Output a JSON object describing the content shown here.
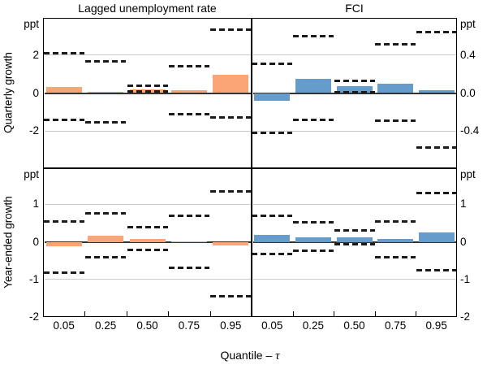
{
  "figure": {
    "column_titles": [
      "Lagged unemployment rate",
      "FCI"
    ],
    "row_titles": [
      "Quarterly growth",
      "Year-ended growth"
    ],
    "x_axis_label_prefix": "Quantile – ",
    "x_axis_label_symbol": "τ",
    "unit_label": "ppt",
    "x_tick_labels": [
      "0.05",
      "0.25",
      "0.50",
      "0.75",
      "0.95"
    ]
  },
  "colors": {
    "lagged_unemployment": "#FBA476",
    "fci": "#669CCB",
    "ci_dash": "#1b1b1b",
    "gridline": "#c9c9c9",
    "zero_line": "#333333",
    "border": "#000000"
  },
  "chart_data": [
    {
      "id": "quarterly-lagged-unemployment",
      "type": "bar",
      "title": "Lagged unemployment rate",
      "row_label": "Quarterly growth",
      "col": 0,
      "row": 0,
      "series": "lagged_unemployment",
      "axis_side": "left",
      "unit": "ppt",
      "ylim": [
        -3.95,
        3.95
      ],
      "yticks": [
        2,
        0,
        -2
      ],
      "ytick_labels": [
        "2",
        "0",
        "-2"
      ],
      "categories": [
        "0.05",
        "0.25",
        "0.50",
        "0.75",
        "0.95"
      ],
      "bars": [
        0.3,
        0.05,
        0.2,
        0.15,
        0.95
      ],
      "ci_upper": [
        2.1,
        1.65,
        0.4,
        1.4,
        3.35
      ],
      "ci_lower": [
        -1.4,
        -1.55,
        0.1,
        -1.1,
        -1.3
      ],
      "grid": true,
      "legend": false
    },
    {
      "id": "quarterly-fci",
      "type": "bar",
      "title": "FCI",
      "row_label": "Quarterly growth",
      "col": 1,
      "row": 0,
      "series": "fci",
      "axis_side": "right",
      "unit": "ppt",
      "ylim": [
        -0.79,
        0.79
      ],
      "yticks": [
        0.4,
        0,
        -0.4
      ],
      "ytick_labels": [
        "0.4",
        "0.0",
        "-0.4"
      ],
      "categories": [
        "0.05",
        "0.25",
        "0.50",
        "0.75",
        "0.95"
      ],
      "bars": [
        -0.08,
        0.15,
        0.07,
        0.1,
        0.03
      ],
      "ci_upper": [
        0.31,
        0.6,
        0.13,
        0.51,
        0.64
      ],
      "ci_lower": [
        -0.42,
        -0.28,
        0.01,
        -0.29,
        -0.57
      ],
      "grid": true,
      "legend": false
    },
    {
      "id": "year-ended-lagged-unemployment",
      "type": "bar",
      "title": "Lagged unemployment rate",
      "row_label": "Year-ended growth",
      "col": 0,
      "row": 1,
      "series": "lagged_unemployment",
      "axis_side": "left",
      "unit": "ppt",
      "ylim": [
        -2.0,
        1.96
      ],
      "yticks": [
        1,
        0,
        -1,
        -2
      ],
      "ytick_labels": [
        "1",
        "0",
        "-1",
        "-2"
      ],
      "categories": [
        "0.05",
        "0.25",
        "0.50",
        "0.75",
        "0.95"
      ],
      "bars": [
        -0.12,
        0.17,
        0.07,
        0.02,
        -0.1
      ],
      "ci_upper": [
        0.55,
        0.76,
        0.39,
        0.7,
        1.34
      ],
      "ci_lower": [
        -0.81,
        -0.4,
        -0.22,
        -0.68,
        -1.44
      ],
      "grid": true,
      "legend": false
    },
    {
      "id": "year-ended-fci",
      "type": "bar",
      "title": "FCI",
      "row_label": "Year-ended growth",
      "col": 1,
      "row": 1,
      "series": "fci",
      "axis_side": "right",
      "unit": "ppt",
      "ylim": [
        -2.0,
        1.96
      ],
      "yticks": [
        1,
        0,
        -1,
        -2
      ],
      "ytick_labels": [
        "1",
        "0",
        "-1",
        "-2"
      ],
      "categories": [
        "0.05",
        "0.25",
        "0.50",
        "0.75",
        "0.95"
      ],
      "bars": [
        0.18,
        0.12,
        0.13,
        0.08,
        0.24
      ],
      "ci_upper": [
        0.69,
        0.52,
        0.31,
        0.55,
        1.3
      ],
      "ci_lower": [
        -0.33,
        -0.24,
        -0.07,
        -0.4,
        -0.75
      ],
      "grid": true,
      "legend": false
    }
  ]
}
